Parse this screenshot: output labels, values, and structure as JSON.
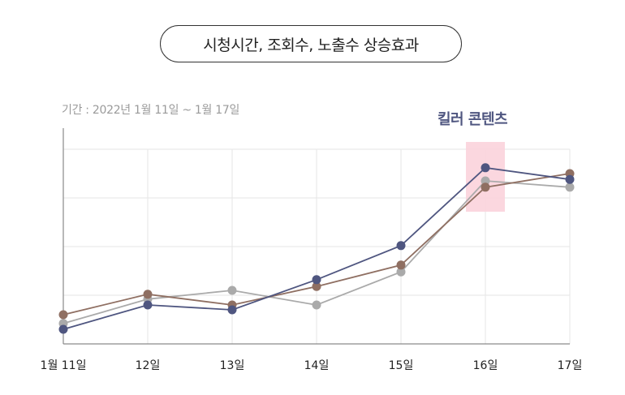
{
  "header": {
    "title": "시청시간, 조회수, 노출수 상승효과",
    "period": "기간 : 2022년 1월 11일 ~ 1월 17일",
    "highlight_label": "킬러 콘텐츠"
  },
  "chart_data": {
    "type": "line",
    "title": "시청시간, 조회수, 노출수 상승효과",
    "xlabel": "",
    "ylabel": "",
    "categories": [
      "1월 11일",
      "12일",
      "13일",
      "14일",
      "15일",
      "16일",
      "17일"
    ],
    "ylim": [
      0,
      4
    ],
    "grid": true,
    "highlight_category": "16일",
    "series": [
      {
        "color": "#4f5680",
        "values": [
          0.3,
          0.8,
          0.7,
          1.32,
          2.02,
          3.62,
          3.38
        ]
      },
      {
        "color": "#8f6f62",
        "values": [
          0.6,
          1.02,
          0.8,
          1.18,
          1.62,
          3.22,
          3.5
        ]
      },
      {
        "color": "#aaaaaa",
        "values": [
          0.42,
          0.92,
          1.1,
          0.8,
          1.48,
          3.35,
          3.22
        ]
      }
    ]
  }
}
